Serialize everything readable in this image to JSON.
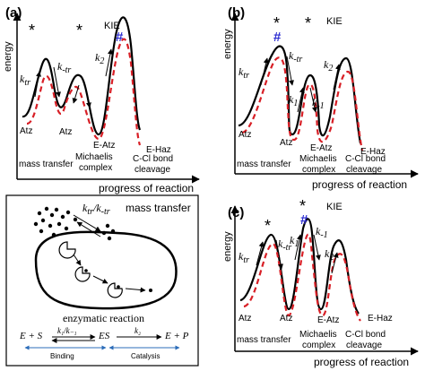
{
  "panel_a": {
    "label": "(a)",
    "y_axis": "energy",
    "x_axis": "progress of reaction",
    "kie": "KIE",
    "hash": "#",
    "stars": [
      "*",
      "*"
    ],
    "rates": {
      "ktr": "k",
      "ktr_sub": "tr",
      "kmtr": "k",
      "kmtr_sub": "-tr",
      "k2": "k",
      "k2_sub": "2"
    },
    "species": [
      "Atz",
      "Atz",
      "E-Atz",
      "E-Haz"
    ],
    "captions": {
      "mass": "mass transfer",
      "mich1": "Michaelis",
      "mich2": "complex",
      "ccl1": "C-Cl bond",
      "ccl2": "cleavage"
    }
  },
  "panel_b": {
    "label": "(b)",
    "y_axis": "energy",
    "x_axis": "progress of reaction",
    "kie": "KIE",
    "hash": "#",
    "stars": [
      "*",
      "*"
    ],
    "rates": {
      "ktr": "k",
      "ktr_sub": "tr",
      "kmtr": "k",
      "kmtr_sub": "-tr",
      "k1": "k",
      "k1_sub": "1",
      "km1": "k",
      "km1_sub": "-1",
      "k2": "k",
      "k2_sub": "2"
    },
    "species": [
      "Atz",
      "Atz",
      "E-Atz",
      "E-Haz"
    ],
    "captions": {
      "mass": "mass transfer",
      "mich1": "Michaelis",
      "mich2": "complex",
      "ccl1": "C-Cl bond",
      "ccl2": "cleavage"
    }
  },
  "panel_c": {
    "label": "(c)",
    "y_axis": "energy",
    "x_axis": "progress of reaction",
    "kie": "KIE",
    "hash": "#",
    "stars": [
      "*",
      "*"
    ],
    "rates": {
      "ktr": "k",
      "ktr_sub": "tr",
      "kmtr": "k",
      "kmtr_sub": "-tr",
      "k1": "k",
      "k1_sub": "1",
      "km1": "k",
      "km1_sub": "-1",
      "k2": "k",
      "k2_sub": "2"
    },
    "species": [
      "Atz",
      "Atz",
      "E-Atz",
      "E-Haz"
    ],
    "captions": {
      "mass": "mass transfer",
      "mich1": "Michaelis",
      "mich2": "complex",
      "ccl1": "C-Cl bond",
      "ccl2": "cleavage"
    }
  },
  "schematic": {
    "transfer_label": "mass transfer",
    "rate_k": "k",
    "rate_tr": "tr",
    "rate_mtr": "-tr",
    "enzymatic_label": "enzymatic reaction",
    "eq_left": "E + S",
    "eq_rate1": "k₁/k₋₁",
    "eq_mid": "ES",
    "eq_rate2": "k₂",
    "eq_right": "E + P",
    "binding": "Binding",
    "catalysis": "Catalysis"
  },
  "colors": {
    "solid_curve": "#000000",
    "dashed_curve": "#d81f26",
    "hash": "#2b2bd1",
    "arrow_blue": "#2b6cb8"
  }
}
